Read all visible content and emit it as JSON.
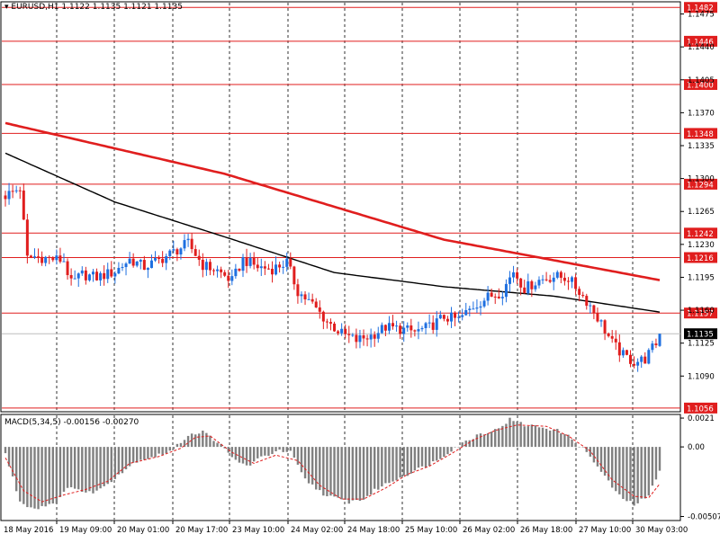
{
  "chart_header": {
    "symbol_line": "EURUSD,H1  1.1122 1.1135 1.1121 1.1135",
    "macd_line": "MACD(5,34,5) -0.00156 -0.00270"
  },
  "colors": {
    "bull": "#1e6fe0",
    "bear": "#e01e1e",
    "ma_fast": "#000000",
    "ma_slow": "#e01e1e",
    "level_line": "#e01e1e",
    "grid": "#000000",
    "macd_hist": "#808080",
    "macd_signal": "#e01e1e"
  },
  "chart_data": {
    "type": "candlestick",
    "symbol": "EURUSD",
    "timeframe": "H1",
    "ohlc_header": {
      "open": 1.1122,
      "high": 1.1135,
      "low": 1.1121,
      "close": 1.1135
    },
    "price_axis": {
      "ylim": [
        1.1053,
        1.1487
      ],
      "ticks": [
        "1.1475",
        "1.1440",
        "1.1405",
        "1.1370",
        "1.1335",
        "1.1300",
        "1.1265",
        "1.1230",
        "1.1195",
        "1.1160",
        "1.1125",
        "1.1090"
      ]
    },
    "horizontal_levels": [
      "1.1482",
      "1.1446",
      "1.1400",
      "1.1348",
      "1.1294",
      "1.1242",
      "1.1216",
      "1.1157",
      "1.1056"
    ],
    "current_price": "1.1135",
    "time_axis": {
      "labels": [
        "18 May 2016",
        "19 May 09:00",
        "20 May 01:00",
        "20 May 17:00",
        "23 May 10:00",
        "24 May 02:00",
        "24 May 18:00",
        "25 May 10:00",
        "26 May 02:00",
        "26 May 18:00",
        "27 May 10:00",
        "30 May 03:00"
      ],
      "grid_at_label_index": [
        1,
        2,
        3,
        4,
        5,
        6,
        7,
        8,
        9,
        10,
        11
      ]
    },
    "close_path": [
      [
        0,
        1.1282
      ],
      [
        4,
        1.129
      ],
      [
        6,
        1.1215
      ],
      [
        8,
        1.1217
      ],
      [
        12,
        1.1215
      ],
      [
        16,
        1.1213
      ],
      [
        18,
        1.1188
      ],
      [
        21,
        1.1198
      ],
      [
        25,
        1.1195
      ],
      [
        30,
        1.1201
      ],
      [
        34,
        1.1214
      ],
      [
        38,
        1.1206
      ],
      [
        42,
        1.1213
      ],
      [
        46,
        1.1222
      ],
      [
        50,
        1.1231
      ],
      [
        54,
        1.1208
      ],
      [
        58,
        1.1202
      ],
      [
        62,
        1.1191
      ],
      [
        65,
        1.1214
      ],
      [
        69,
        1.1206
      ],
      [
        73,
        1.1204
      ],
      [
        77,
        1.1211
      ],
      [
        80,
        1.118
      ],
      [
        84,
        1.1166
      ],
      [
        88,
        1.1148
      ],
      [
        92,
        1.1135
      ],
      [
        96,
        1.1128
      ],
      [
        100,
        1.1133
      ],
      [
        104,
        1.1142
      ],
      [
        108,
        1.114
      ],
      [
        112,
        1.1137
      ],
      [
        116,
        1.1142
      ],
      [
        120,
        1.1153
      ],
      [
        124,
        1.115
      ],
      [
        128,
        1.1164
      ],
      [
        132,
        1.1174
      ],
      [
        136,
        1.118
      ],
      [
        139,
        1.1202
      ],
      [
        142,
        1.1183
      ],
      [
        146,
        1.1192
      ],
      [
        150,
        1.1196
      ],
      [
        154,
        1.1194
      ],
      [
        157,
        1.118
      ],
      [
        160,
        1.1165
      ],
      [
        163,
        1.1146
      ],
      [
        166,
        1.1125
      ],
      [
        169,
        1.1112
      ],
      [
        172,
        1.1105
      ],
      [
        175,
        1.1108
      ],
      [
        178,
        1.1125
      ],
      [
        179,
        1.1135
      ]
    ],
    "ma_slow_path": [
      [
        0,
        1.1359
      ],
      [
        60,
        1.1305
      ],
      [
        120,
        1.1235
      ],
      [
        179,
        1.1192
      ]
    ],
    "ma_fast_path": [
      [
        0,
        1.1327
      ],
      [
        30,
        1.1275
      ],
      [
        60,
        1.1238
      ],
      [
        90,
        1.12
      ],
      [
        120,
        1.1185
      ],
      [
        150,
        1.1175
      ],
      [
        179,
        1.1158
      ]
    ],
    "macd": {
      "header": "MACD(5,34,5) -0.00156 -0.00270",
      "params": [
        5,
        34,
        5
      ],
      "main": -0.00156,
      "signal": -0.0027,
      "ylim": [
        -0.0053,
        0.0023
      ],
      "ticks": [
        "0.0021",
        "0.00",
        "-0.00507"
      ],
      "hist_path": [
        [
          0,
          -0.0005
        ],
        [
          4,
          -0.004
        ],
        [
          8,
          -0.0045
        ],
        [
          14,
          -0.004
        ],
        [
          18,
          -0.0028
        ],
        [
          22,
          -0.0034
        ],
        [
          26,
          -0.0031
        ],
        [
          30,
          -0.0022
        ],
        [
          36,
          -0.001
        ],
        [
          42,
          -0.0006
        ],
        [
          46,
          -0.0002
        ],
        [
          50,
          0.0009
        ],
        [
          54,
          0.0011
        ],
        [
          58,
          0.0004
        ],
        [
          62,
          -0.0008
        ],
        [
          66,
          -0.0014
        ],
        [
          70,
          -0.0008
        ],
        [
          74,
          -0.0003
        ],
        [
          78,
          -0.0004
        ],
        [
          82,
          -0.0024
        ],
        [
          88,
          -0.0036
        ],
        [
          94,
          -0.004
        ],
        [
          98,
          -0.0038
        ],
        [
          102,
          -0.003
        ],
        [
          108,
          -0.0022
        ],
        [
          114,
          -0.0015
        ],
        [
          118,
          -0.001
        ],
        [
          122,
          -0.0002
        ],
        [
          126,
          0.0004
        ],
        [
          130,
          0.001
        ],
        [
          134,
          0.0012
        ],
        [
          138,
          0.002
        ],
        [
          142,
          0.0016
        ],
        [
          148,
          0.0014
        ],
        [
          152,
          0.0011
        ],
        [
          156,
          0.0004
        ],
        [
          160,
          -0.0007
        ],
        [
          164,
          -0.0022
        ],
        [
          168,
          -0.0036
        ],
        [
          172,
          -0.0042
        ],
        [
          176,
          -0.0036
        ],
        [
          179,
          -0.0016
        ]
      ],
      "signal_path": [
        [
          0,
          -0.0008
        ],
        [
          5,
          -0.0032
        ],
        [
          10,
          -0.004
        ],
        [
          16,
          -0.0035
        ],
        [
          22,
          -0.0031
        ],
        [
          28,
          -0.0025
        ],
        [
          34,
          -0.0012
        ],
        [
          42,
          -0.0007
        ],
        [
          48,
          -0.0001
        ],
        [
          52,
          0.0007
        ],
        [
          56,
          0.0008
        ],
        [
          62,
          -0.0004
        ],
        [
          68,
          -0.0012
        ],
        [
          74,
          -0.0006
        ],
        [
          80,
          -0.001
        ],
        [
          86,
          -0.0028
        ],
        [
          92,
          -0.0038
        ],
        [
          98,
          -0.0038
        ],
        [
          104,
          -0.003
        ],
        [
          110,
          -0.002
        ],
        [
          116,
          -0.0014
        ],
        [
          122,
          -0.0005
        ],
        [
          128,
          0.0005
        ],
        [
          134,
          0.0012
        ],
        [
          140,
          0.0016
        ],
        [
          148,
          0.0015
        ],
        [
          154,
          0.0008
        ],
        [
          160,
          -0.0003
        ],
        [
          166,
          -0.0024
        ],
        [
          172,
          -0.0036
        ],
        [
          176,
          -0.0037
        ],
        [
          179,
          -0.0027
        ]
      ]
    }
  }
}
